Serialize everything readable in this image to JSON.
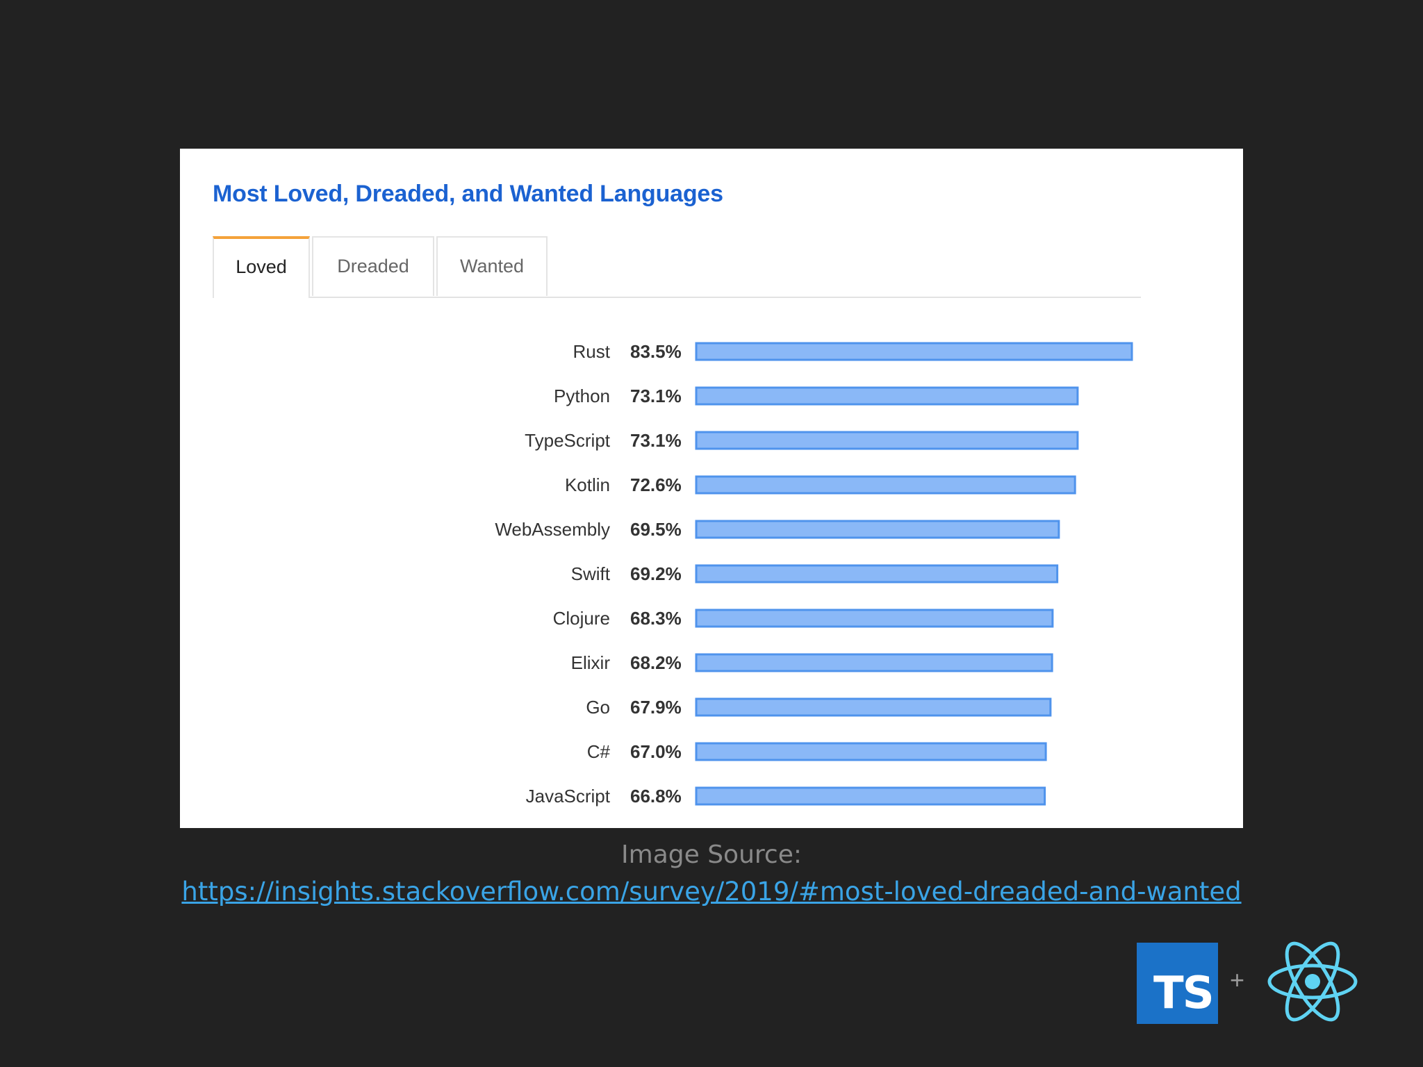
{
  "tabs": [
    {
      "label": "Loved",
      "active": true
    },
    {
      "label": "Dreaded",
      "active": false
    },
    {
      "label": "Wanted",
      "active": false
    }
  ],
  "source": {
    "label": "Image Source:",
    "url": "https://insights.stackoverflow.com/survey/2019/#most-loved-dreaded-and-wanted"
  },
  "logos": {
    "ts_text": "TS",
    "plus": "+",
    "ts_color": "#1b72c8",
    "react_color": "#5fd3f3"
  },
  "chart_data": {
    "type": "bar",
    "orientation": "horizontal",
    "title": "Most Loved, Dreaded, and Wanted Languages",
    "categories": [
      "Rust",
      "Python",
      "TypeScript",
      "Kotlin",
      "WebAssembly",
      "Swift",
      "Clojure",
      "Elixir",
      "Go",
      "C#",
      "JavaScript"
    ],
    "values": [
      83.5,
      73.1,
      73.1,
      72.6,
      69.5,
      69.2,
      68.3,
      68.2,
      67.9,
      67.0,
      66.8
    ],
    "value_labels": [
      "83.5%",
      "73.1%",
      "73.1%",
      "72.6%",
      "69.5%",
      "69.2%",
      "68.3%",
      "68.2%",
      "67.9%",
      "67.0%",
      "66.8%"
    ],
    "xlim": [
      0,
      83.5
    ],
    "grid": false,
    "bar_fill": "#8ab8f7",
    "bar_stroke": "#4f93ec"
  }
}
